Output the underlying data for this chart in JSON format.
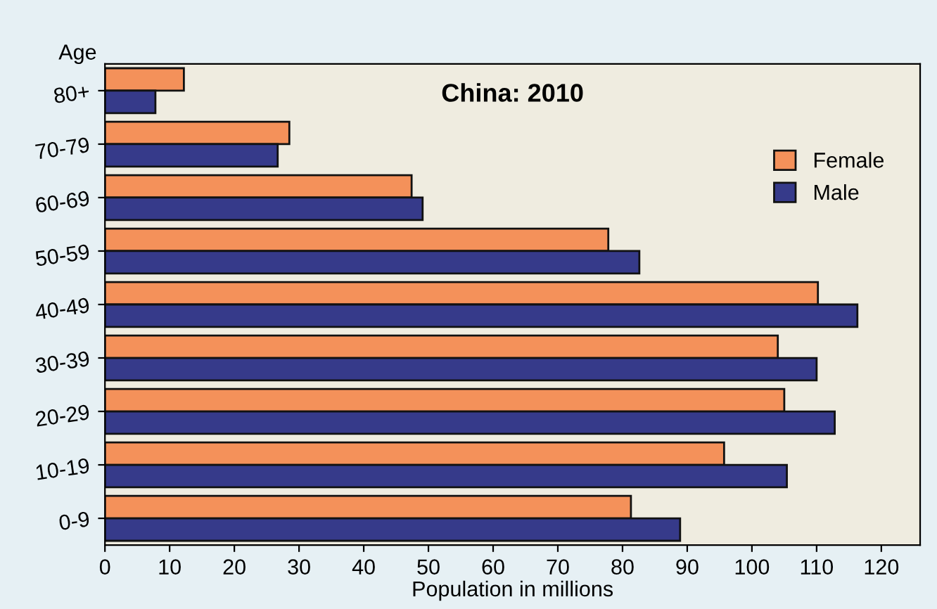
{
  "chart_data": {
    "type": "bar",
    "orientation": "horizontal",
    "title": "China: 2010",
    "xlabel": "Population in millions",
    "ylabel": "Age",
    "categories": [
      "80+",
      "70-79",
      "60-69",
      "50-59",
      "40-49",
      "30-39",
      "20-29",
      "10-19",
      "0-9"
    ],
    "series": [
      {
        "name": "Female",
        "color": "#f4915a",
        "values": [
          12.2,
          28.5,
          47.4,
          77.8,
          110.2,
          104,
          105,
          95.7,
          81.3
        ]
      },
      {
        "name": "Male",
        "color": "#363a8a",
        "values": [
          7.8,
          26.7,
          49.1,
          82.6,
          116.3,
          110,
          112.8,
          105.4,
          88.9
        ]
      }
    ],
    "xlim": [
      0,
      126
    ],
    "xticks": [
      0,
      10,
      20,
      30,
      40,
      50,
      60,
      70,
      80,
      90,
      100,
      110,
      120
    ],
    "grid": false,
    "legend": "top right"
  }
}
